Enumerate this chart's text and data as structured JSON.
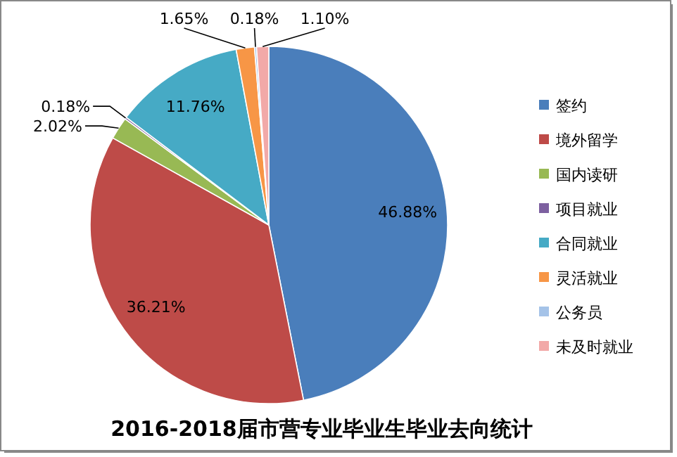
{
  "chart_data": {
    "type": "pie",
    "title": "2016-2018届市营专业毕业生毕业去向统计",
    "categories": [
      "签约",
      "境外留学",
      "国内读研",
      "项目就业",
      "合同就业",
      "灵活就业",
      "公务员",
      "未及时就业"
    ],
    "values": [
      46.88,
      36.21,
      2.02,
      0.18,
      11.76,
      1.65,
      0.18,
      1.1
    ],
    "value_labels": [
      "46.88%",
      "36.21%",
      "2.02%",
      "0.18%",
      "11.76%",
      "1.65%",
      "0.18%",
      "1.10%"
    ],
    "colors": [
      "#4a7ebb",
      "#be4b48",
      "#98b954",
      "#7d60a0",
      "#46aac5",
      "#f79646",
      "#a5c3e8",
      "#f2a9a8"
    ],
    "legend": "right"
  }
}
